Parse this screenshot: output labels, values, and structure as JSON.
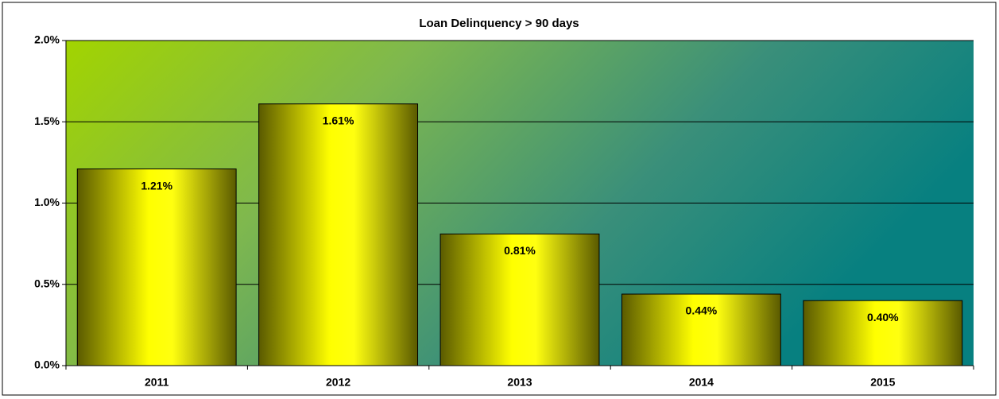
{
  "chart_data": {
    "type": "bar",
    "title": "Loan Delinquency > 90 days",
    "categories": [
      "2011",
      "2012",
      "2013",
      "2014",
      "2015"
    ],
    "values": [
      1.21,
      1.61,
      0.81,
      0.44,
      0.4
    ],
    "value_labels": [
      "1.21%",
      "1.61%",
      "0.81%",
      "0.44%",
      "0.40%"
    ],
    "color": "#ffff00",
    "ylim": [
      0,
      2
    ],
    "yticks": [
      {
        "value": 0,
        "label": "0.0%"
      },
      {
        "value": 0.5,
        "label": "0.5%"
      },
      {
        "value": 1,
        "label": "1.0%"
      },
      {
        "value": 1.5,
        "label": "1.5%"
      },
      {
        "value": 2,
        "label": "2.0%"
      }
    ],
    "grid": true
  }
}
